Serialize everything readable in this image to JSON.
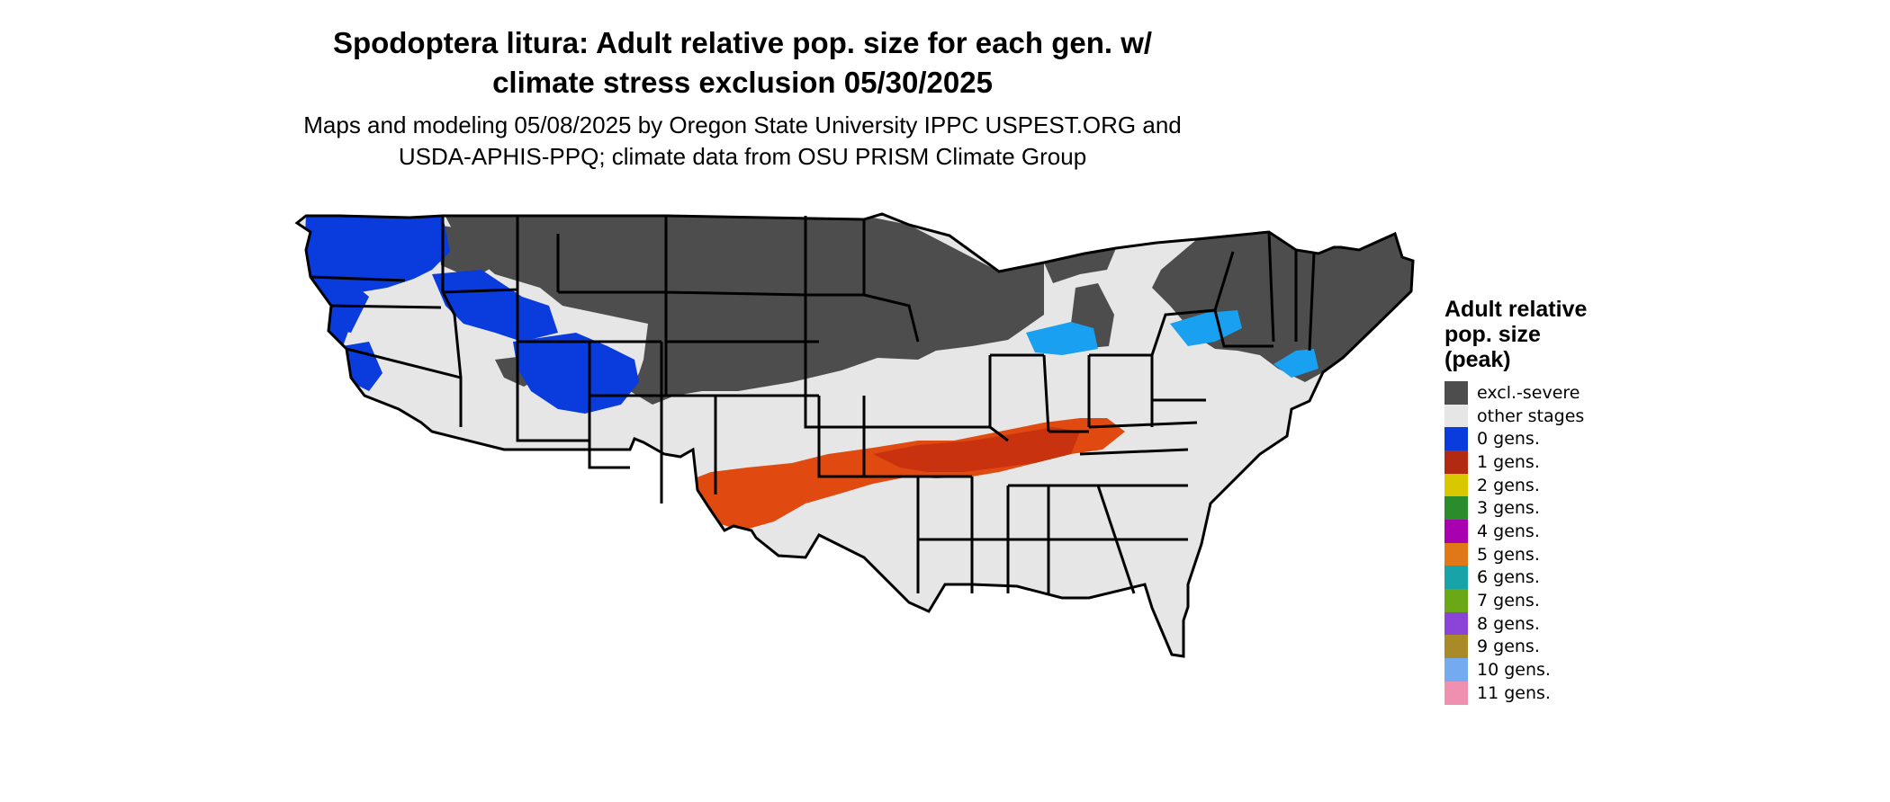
{
  "title": {
    "line1": "Spodoptera litura: Adult relative pop. size for each gen. w/",
    "line2": "climate stress exclusion 05/30/2025"
  },
  "subtitle": {
    "line1": "Maps and modeling 05/08/2025 by Oregon State University IPPC USPEST.ORG and",
    "line2": "USDA-APHIS-PPQ; climate data from OSU PRISM Climate Group"
  },
  "legend": {
    "title_line1": "Adult relative",
    "title_line2": "pop. size",
    "title_line3": "(peak)",
    "items": [
      {
        "label": "excl.-severe",
        "color": "#4d4d4d"
      },
      {
        "label": "other stages",
        "color": "#e6e6e6"
      },
      {
        "label": "0 gens.",
        "color": "#0a3bdc"
      },
      {
        "label": "1 gens.",
        "color": "#b32a13"
      },
      {
        "label": "2 gens.",
        "color": "#d9c800"
      },
      {
        "label": "3 gens.",
        "color": "#2a8c2a"
      },
      {
        "label": "4 gens.",
        "color": "#a800b0"
      },
      {
        "label": "5 gens.",
        "color": "#e07818"
      },
      {
        "label": "6 gens.",
        "color": "#17a3a8"
      },
      {
        "label": "7 gens.",
        "color": "#6aa817"
      },
      {
        "label": "8 gens.",
        "color": "#8a45d8"
      },
      {
        "label": "9 gens.",
        "color": "#a88b28"
      },
      {
        "label": "10 gens.",
        "color": "#73aaf0"
      },
      {
        "label": "11 gens.",
        "color": "#f090b0"
      }
    ]
  },
  "map": {
    "colors": {
      "excluded": "#4d4d4d",
      "other": "#e6e6e6",
      "gen0": "#0a3bdc",
      "gen0_light": "#1aa0f0",
      "gen1": "#c8320f",
      "gen1_orange": "#e04a10",
      "gen2": "#e6e000",
      "gen3": "#2a8c2a",
      "border": "#000000"
    }
  }
}
